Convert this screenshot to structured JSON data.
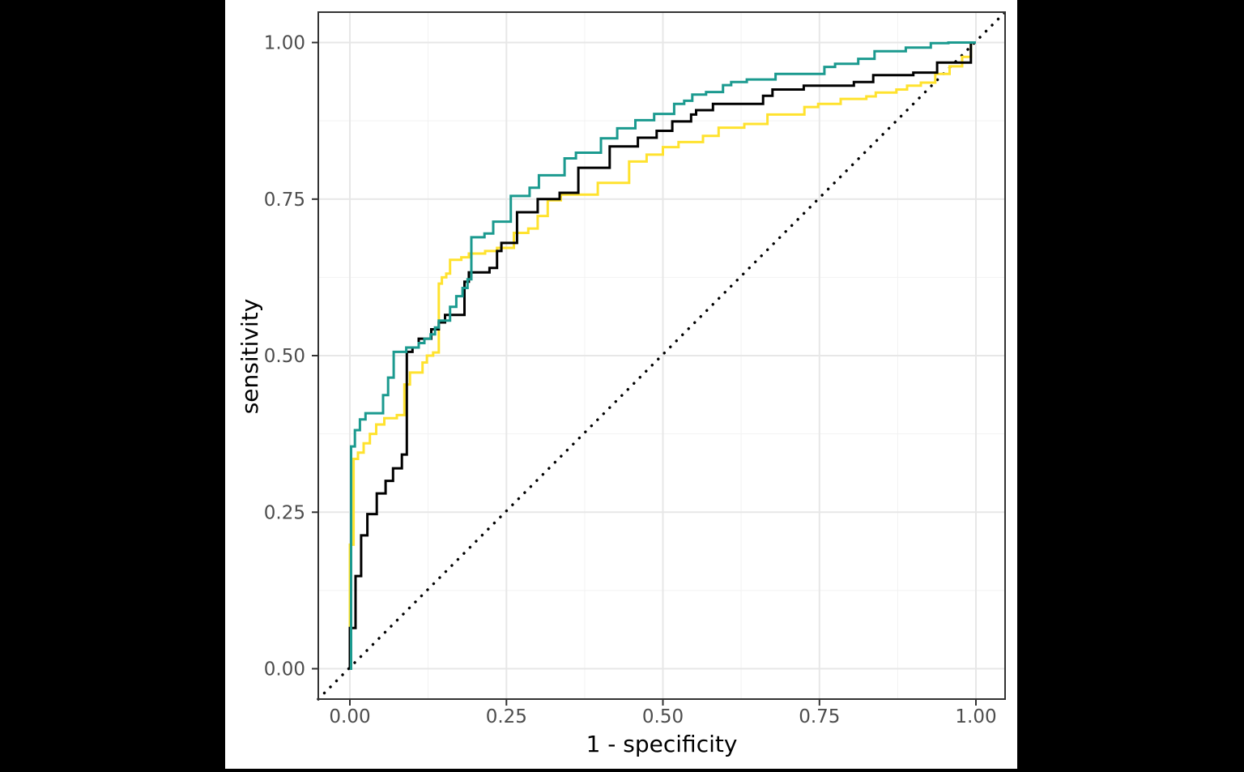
{
  "figure": {
    "outer_background": "#000000",
    "plot_background": "#ffffff",
    "panel_border_color": "#333333",
    "grid_major_color": "#e7e7e7",
    "grid_minor_color": "#f2f2f2",
    "tick_color": "#333333",
    "tick_label_color": "#4d4d4d"
  },
  "chart_data": {
    "type": "line",
    "subtype": "roc-step-curves",
    "title": "",
    "xlabel": "1 - specificity",
    "ylabel": "sensitivity",
    "x_ticks": {
      "values": [
        0,
        0.25,
        0.5,
        0.75,
        1.0
      ],
      "labels": [
        "0.00",
        "0.25",
        "0.50",
        "0.75",
        "1.00"
      ]
    },
    "y_ticks": {
      "values": [
        0,
        0.25,
        0.5,
        0.75,
        1.0
      ],
      "labels": [
        "0.00",
        "0.25",
        "0.50",
        "0.75",
        "1.00"
      ]
    },
    "x_minor_ticks": [
      0.125,
      0.375,
      0.625,
      0.875
    ],
    "y_minor_ticks": [
      0.125,
      0.375,
      0.625,
      0.875
    ],
    "xlim": [
      -0.05,
      1.05
    ],
    "ylim": [
      -0.05,
      1.05
    ],
    "grid": "major and minor gridlines, light gray on white, theme_bw style",
    "legend": "none",
    "reference_line": {
      "style": "dotted",
      "color": "#000000",
      "from": [
        0,
        0
      ],
      "to": [
        1,
        1
      ]
    },
    "series": [
      {
        "name": "yellow-curve",
        "color": "#ffe22e",
        "points": [
          [
            0,
            0
          ],
          [
            0,
            0.198
          ],
          [
            0.006,
            0.335
          ],
          [
            0.013,
            0.345
          ],
          [
            0.022,
            0.36
          ],
          [
            0.032,
            0.375
          ],
          [
            0.042,
            0.39
          ],
          [
            0.055,
            0.4
          ],
          [
            0.075,
            0.405
          ],
          [
            0.087,
            0.454
          ],
          [
            0.096,
            0.473
          ],
          [
            0.116,
            0.489
          ],
          [
            0.123,
            0.5
          ],
          [
            0.133,
            0.505
          ],
          [
            0.142,
            0.615
          ],
          [
            0.147,
            0.625
          ],
          [
            0.154,
            0.631
          ],
          [
            0.16,
            0.653
          ],
          [
            0.178,
            0.657
          ],
          [
            0.19,
            0.663
          ],
          [
            0.216,
            0.667
          ],
          [
            0.235,
            0.672
          ],
          [
            0.262,
            0.696
          ],
          [
            0.285,
            0.703
          ],
          [
            0.3,
            0.723
          ],
          [
            0.316,
            0.748
          ],
          [
            0.337,
            0.757
          ],
          [
            0.396,
            0.776
          ],
          [
            0.446,
            0.81
          ],
          [
            0.474,
            0.821
          ],
          [
            0.5,
            0.833
          ],
          [
            0.525,
            0.841
          ],
          [
            0.564,
            0.851
          ],
          [
            0.589,
            0.864
          ],
          [
            0.63,
            0.87
          ],
          [
            0.667,
            0.885
          ],
          [
            0.726,
            0.897
          ],
          [
            0.748,
            0.902
          ],
          [
            0.784,
            0.91
          ],
          [
            0.825,
            0.914
          ],
          [
            0.84,
            0.92
          ],
          [
            0.873,
            0.925
          ],
          [
            0.89,
            0.931
          ],
          [
            0.912,
            0.936
          ],
          [
            0.935,
            0.95
          ],
          [
            0.958,
            0.962
          ],
          [
            0.978,
            0.977
          ],
          [
            0.992,
            1.0
          ],
          [
            1.0,
            1.0
          ]
        ]
      },
      {
        "name": "black-curve",
        "color": "#000000",
        "points": [
          [
            0,
            0
          ],
          [
            0,
            0.065
          ],
          [
            0.009,
            0.148
          ],
          [
            0.018,
            0.213
          ],
          [
            0.028,
            0.247
          ],
          [
            0.043,
            0.28
          ],
          [
            0.057,
            0.3
          ],
          [
            0.069,
            0.32
          ],
          [
            0.083,
            0.342
          ],
          [
            0.091,
            0.506
          ],
          [
            0.1,
            0.513
          ],
          [
            0.11,
            0.527
          ],
          [
            0.13,
            0.542
          ],
          [
            0.142,
            0.553
          ],
          [
            0.152,
            0.565
          ],
          [
            0.183,
            0.618
          ],
          [
            0.19,
            0.633
          ],
          [
            0.223,
            0.64
          ],
          [
            0.235,
            0.667
          ],
          [
            0.242,
            0.68
          ],
          [
            0.267,
            0.729
          ],
          [
            0.3,
            0.75
          ],
          [
            0.335,
            0.76
          ],
          [
            0.365,
            0.8
          ],
          [
            0.415,
            0.834
          ],
          [
            0.46,
            0.848
          ],
          [
            0.49,
            0.859
          ],
          [
            0.515,
            0.874
          ],
          [
            0.545,
            0.885
          ],
          [
            0.553,
            0.892
          ],
          [
            0.58,
            0.902
          ],
          [
            0.66,
            0.915
          ],
          [
            0.675,
            0.925
          ],
          [
            0.725,
            0.931
          ],
          [
            0.805,
            0.937
          ],
          [
            0.836,
            0.948
          ],
          [
            0.9,
            0.952
          ],
          [
            0.938,
            0.968
          ],
          [
            0.992,
            1.0
          ],
          [
            1.0,
            1.0
          ]
        ]
      },
      {
        "name": "teal-curve",
        "color": "#1b9a8f",
        "points": [
          [
            0,
            0
          ],
          [
            0.002,
            0.355
          ],
          [
            0.008,
            0.381
          ],
          [
            0.016,
            0.398
          ],
          [
            0.025,
            0.408
          ],
          [
            0.053,
            0.437
          ],
          [
            0.061,
            0.465
          ],
          [
            0.07,
            0.506
          ],
          [
            0.09,
            0.513
          ],
          [
            0.11,
            0.52
          ],
          [
            0.119,
            0.527
          ],
          [
            0.129,
            0.534
          ],
          [
            0.136,
            0.545
          ],
          [
            0.142,
            0.556
          ],
          [
            0.16,
            0.578
          ],
          [
            0.17,
            0.595
          ],
          [
            0.18,
            0.608
          ],
          [
            0.188,
            0.622
          ],
          [
            0.194,
            0.689
          ],
          [
            0.215,
            0.695
          ],
          [
            0.229,
            0.714
          ],
          [
            0.257,
            0.755
          ],
          [
            0.287,
            0.768
          ],
          [
            0.302,
            0.788
          ],
          [
            0.343,
            0.815
          ],
          [
            0.361,
            0.824
          ],
          [
            0.401,
            0.847
          ],
          [
            0.427,
            0.863
          ],
          [
            0.456,
            0.876
          ],
          [
            0.486,
            0.886
          ],
          [
            0.518,
            0.902
          ],
          [
            0.534,
            0.907
          ],
          [
            0.547,
            0.917
          ],
          [
            0.569,
            0.921
          ],
          [
            0.596,
            0.932
          ],
          [
            0.609,
            0.937
          ],
          [
            0.634,
            0.941
          ],
          [
            0.68,
            0.95
          ],
          [
            0.758,
            0.961
          ],
          [
            0.775,
            0.966
          ],
          [
            0.812,
            0.974
          ],
          [
            0.838,
            0.986
          ],
          [
            0.888,
            0.992
          ],
          [
            0.928,
            0.999
          ],
          [
            0.956,
            1.0
          ],
          [
            1.0,
            1.0
          ]
        ]
      }
    ]
  }
}
